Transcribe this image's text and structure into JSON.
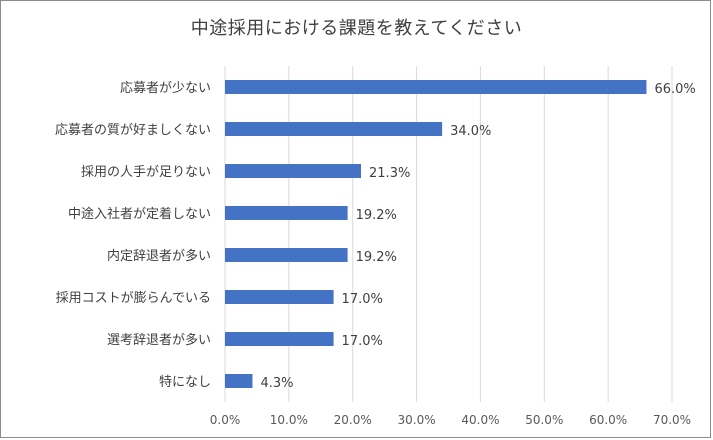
{
  "chart_data": {
    "type": "bar",
    "orientation": "horizontal",
    "title": "中途採用における課題を教えてください",
    "categories": [
      "応募者が少ない",
      "応募者の質が好ましくない",
      "採用の人手が足りない",
      "中途入社者が定着しない",
      "内定辞退者が多い",
      "採用コストが膨らんでいる",
      "選考辞退者が多い",
      "特になし"
    ],
    "values": [
      66.0,
      34.0,
      21.3,
      19.2,
      19.2,
      17.0,
      17.0,
      4.3
    ],
    "value_labels": [
      "66.0%",
      "34.0%",
      "21.3%",
      "19.2%",
      "19.2%",
      "17.0%",
      "17.0%",
      "4.3%"
    ],
    "xlim": [
      0,
      70
    ],
    "xticks": [
      0,
      10,
      20,
      30,
      40,
      50,
      60,
      70
    ],
    "xtick_labels": [
      "0.0%",
      "10.0%",
      "20.0%",
      "30.0%",
      "40.0%",
      "50.0%",
      "60.0%",
      "70.0%"
    ],
    "xlabel": "",
    "ylabel": "",
    "grid": "vertical",
    "bar_color": "#4472c4",
    "grid_color": "#d9d9d9"
  }
}
